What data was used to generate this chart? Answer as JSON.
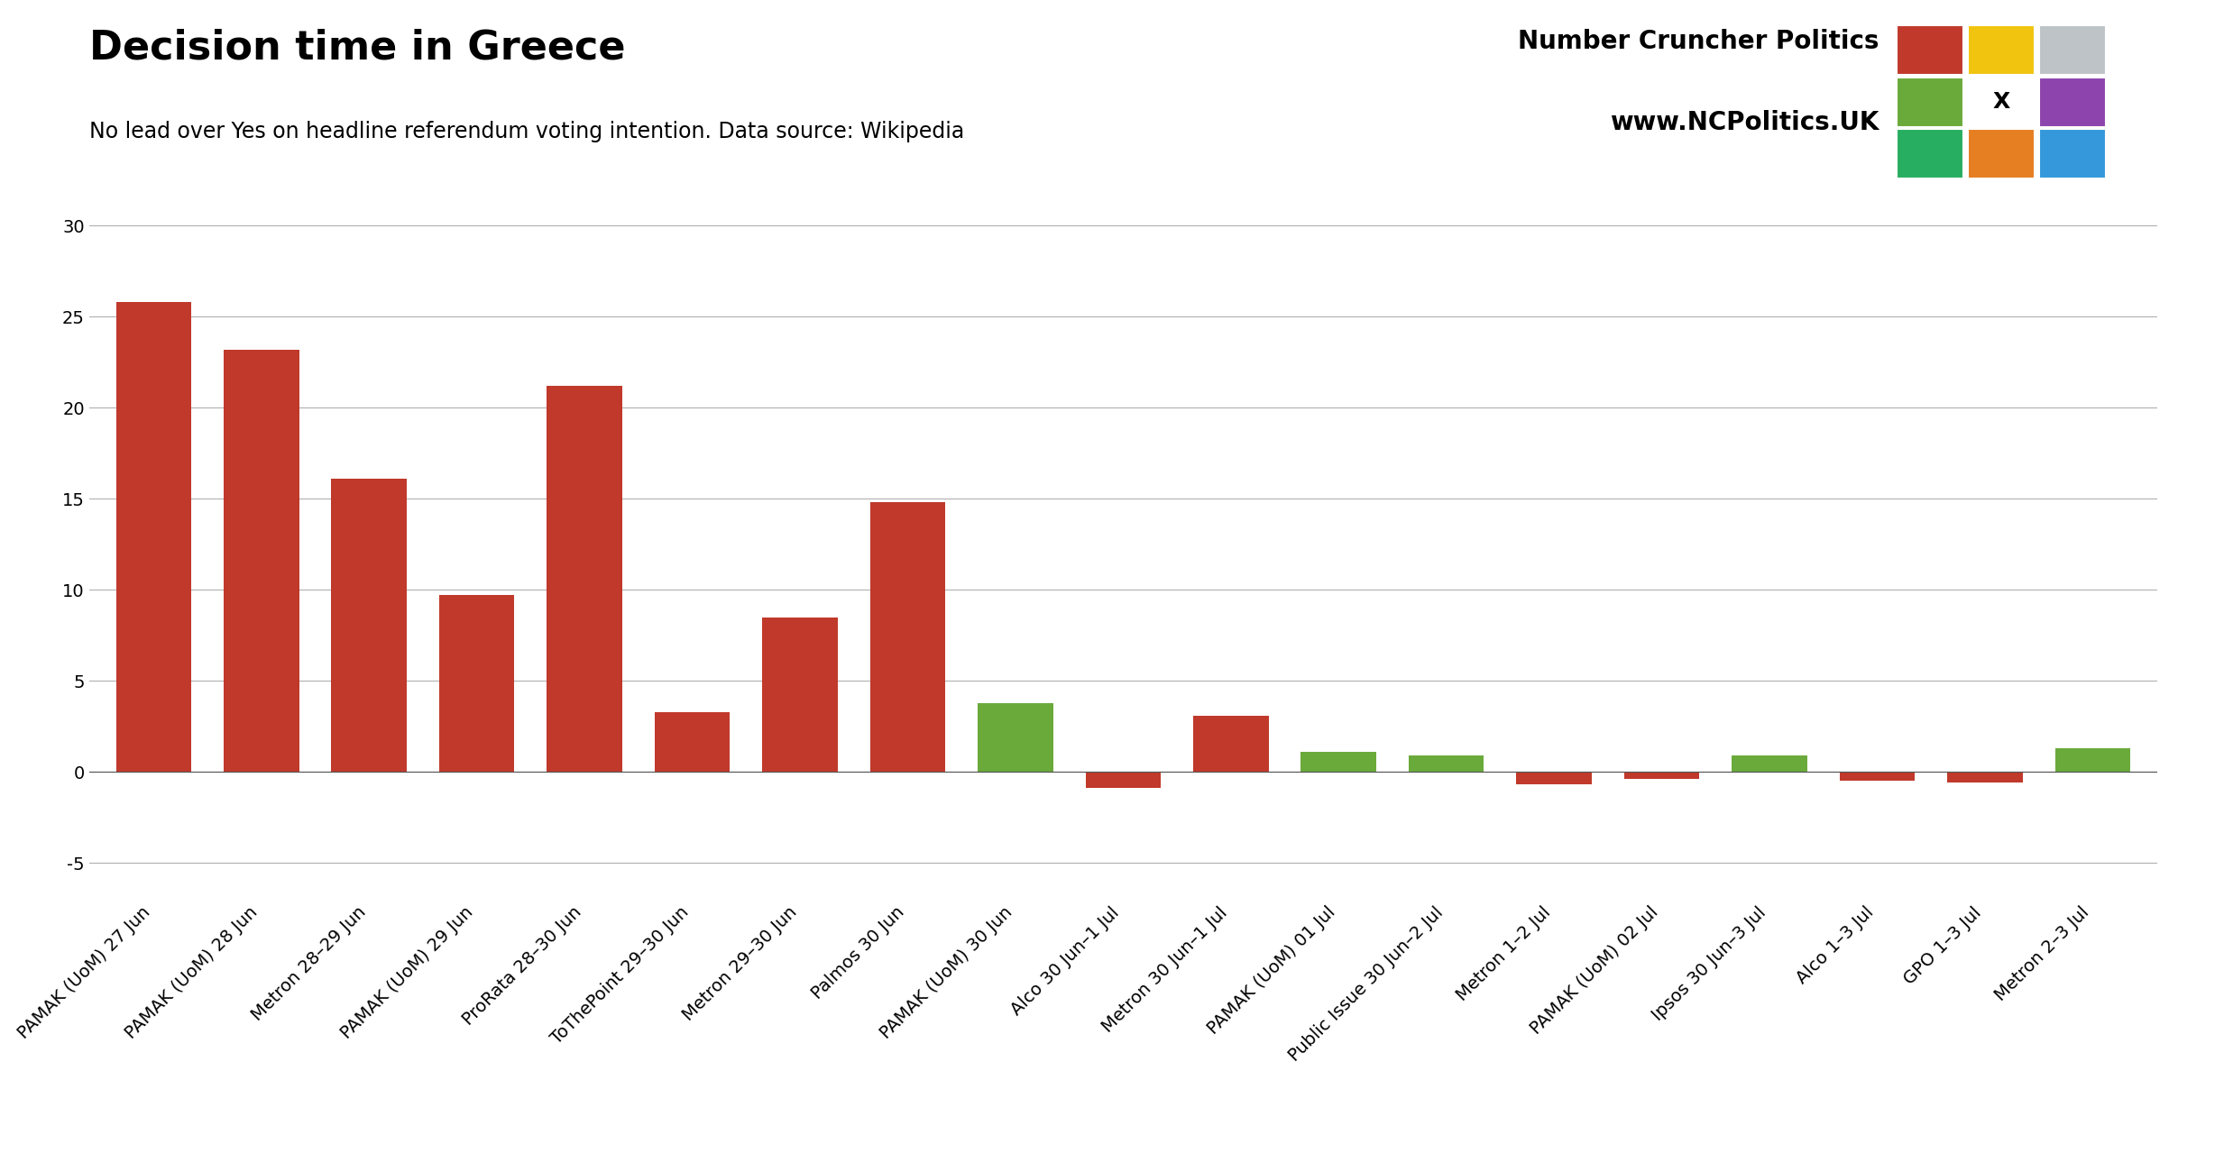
{
  "title": "Decision time in Greece",
  "subtitle": "No lead over Yes on headline referendum voting intention. Data source: Wikipedia",
  "categories": [
    "PAMAK (UoM) 27 Jun",
    "PAMAK (UoM) 28 Jun",
    "Metron 28–29 Jun",
    "PAMAK (UoM) 29 Jun",
    "ProRata 28–30 Jun",
    "ToThePoint 29–30 Jun",
    "Metron 29–30 Jun",
    "Palmos 30 Jun",
    "PAMAK (UoM) 30 Jun",
    "Alco 30 Jun–1 Jul",
    "Metron 30 Jun–1 Jul",
    "PAMAK (UoM) 01 Jul",
    "Public Issue 30 Jun–2 Jul",
    "Metron 1–2 Jul",
    "PAMAK (UoM) 02 Jul",
    "Ipsos 30 Jun–3 Jul",
    "Alco 1–3 Jul",
    "GPO 1–3 Jul",
    "Metron 2–3 Jul"
  ],
  "values": [
    25.8,
    23.2,
    16.1,
    9.7,
    21.2,
    3.3,
    8.5,
    14.8,
    3.8,
    -0.9,
    3.1,
    1.1,
    0.9,
    -0.7,
    -0.4,
    0.9,
    -0.5,
    -0.6,
    1.3
  ],
  "bar_color_list": [
    "#c0392b",
    "#c0392b",
    "#c0392b",
    "#c0392b",
    "#c0392b",
    "#c0392b",
    "#c0392b",
    "#c0392b",
    "#6aaa3a",
    "#c0392b",
    "#c0392b",
    "#6aaa3a",
    "#6aaa3a",
    "#c0392b",
    "#c0392b",
    "#6aaa3a",
    "#c0392b",
    "#c0392b",
    "#6aaa3a"
  ],
  "ylim": [
    -7,
    31
  ],
  "yticks": [
    -5,
    0,
    5,
    10,
    15,
    20,
    25,
    30
  ],
  "background_color": "#ffffff",
  "title_fontsize": 32,
  "subtitle_fontsize": 17,
  "tick_fontsize": 14,
  "brand_fontsize": 20,
  "logo_grid": [
    [
      "#c0392b",
      "#f1c40f",
      "#bdc3c7"
    ],
    [
      "#6aaa3a",
      "#ffffff",
      "#8e44ad"
    ],
    [
      "#27ae60",
      "#e67e22",
      "#3498db"
    ]
  ]
}
